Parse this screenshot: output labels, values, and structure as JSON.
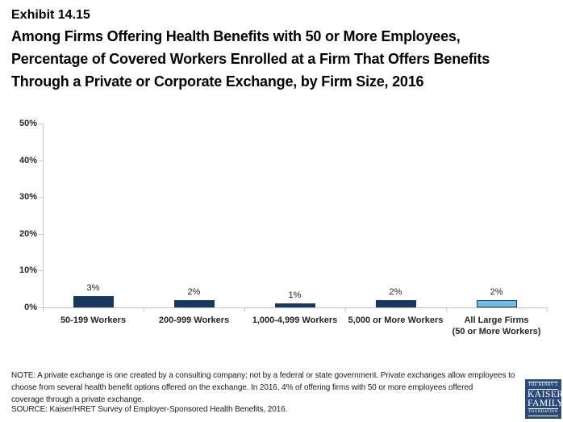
{
  "header": {
    "exhibit": "Exhibit 14.15",
    "title_lines": [
      "Among Firms Offering Health Benefits with 50 or More Employees,",
      "Percentage of Covered Workers Enrolled at a Firm That Offers Benefits",
      "Through a Private or Corporate Exchange, by Firm Size, 2016"
    ]
  },
  "chart_data": {
    "type": "bar",
    "title": "Among Firms Offering Health Benefits with 50 or More Employees, Percentage of Covered Workers Enrolled at a Firm That Offers Benefits Through a Private or Corporate Exchange, by Firm Size, 2016",
    "categories": [
      "50-199 Workers",
      "200-999 Workers",
      "1,000-4,999 Workers",
      "5,000 or More Workers",
      "All Large Firms\n(50 or More Workers)"
    ],
    "values": [
      3,
      2,
      1,
      2,
      2
    ],
    "value_labels": [
      "3%",
      "2%",
      "1%",
      "2%",
      "2%"
    ],
    "ylim": [
      0,
      50
    ],
    "yticks": [
      0,
      10,
      20,
      30,
      40,
      50
    ],
    "ytick_labels": [
      "0%",
      "10%",
      "20%",
      "30%",
      "40%",
      "50%"
    ],
    "bar_colors": [
      "#17375e",
      "#17375e",
      "#17375e",
      "#17375e",
      "#76bde5"
    ],
    "bar_border_colors": [
      "#17375e",
      "#17375e",
      "#17375e",
      "#17375e",
      "#17375e"
    ],
    "xlabel": "",
    "ylabel": "",
    "grid": false,
    "legend": false,
    "axis_color": "#c6c6c6"
  },
  "footer": {
    "note_lines": [
      "NOTE: A private exchange is one created by a consulting company; not by a federal or state government. Private exchanges allow employees to",
      "choose from several health benefit options offered on the exchange. In 2016, 4% of offering firms with 50 or more employees offered",
      "coverage through a private exchange."
    ],
    "source": "SOURCE: Kaiser/HRET Survey of Employer-Sponsored Health Benefits, 2016."
  },
  "logo": {
    "line1": "THE HENRY J.",
    "line2": "KAISER",
    "line3": "FAMILY",
    "line4": "FOUNDATION"
  }
}
